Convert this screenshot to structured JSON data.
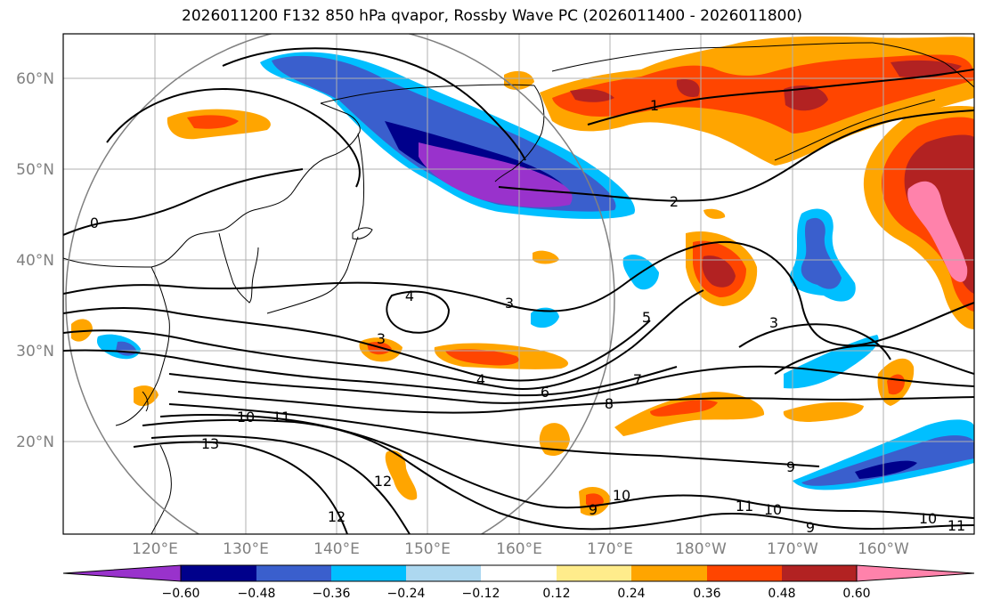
{
  "title": "2026011200 F132 850 hPa qvapor, Rossby Wave PC (2026011400 - 2026011800)",
  "latitude_labels": [
    "60°N",
    "50°N",
    "40°N",
    "30°N",
    "20°N"
  ],
  "longitude_labels": [
    "120°E",
    "130°E",
    "140°E",
    "150°E",
    "160°E",
    "170°E",
    "180°W",
    "170°W",
    "160°W"
  ],
  "colorbar": {
    "tick_labels": [
      "−0.60",
      "−0.48",
      "−0.36",
      "−0.24",
      "−0.12",
      "0.12",
      "0.24",
      "0.36",
      "0.48",
      "0.60"
    ],
    "colors": [
      "#9932cc",
      "#00008b",
      "#3a5fcd",
      "#00bfff",
      "#add8f0",
      "#ffffff",
      "#ffec8b",
      "#ffa500",
      "#ff4500",
      "#b22222",
      "#ff82ab"
    ]
  },
  "contour_labels": [
    "0",
    "1",
    "2",
    "3",
    "3",
    "3",
    "4",
    "4",
    "5",
    "6",
    "7",
    "8",
    "9",
    "9",
    "9",
    "10",
    "10",
    "10",
    "10",
    "11",
    "11",
    "11",
    "12",
    "12",
    "13"
  ],
  "colors": {
    "coastline": "#000000",
    "grid": "#b0b0b0",
    "circle": "#808080"
  }
}
